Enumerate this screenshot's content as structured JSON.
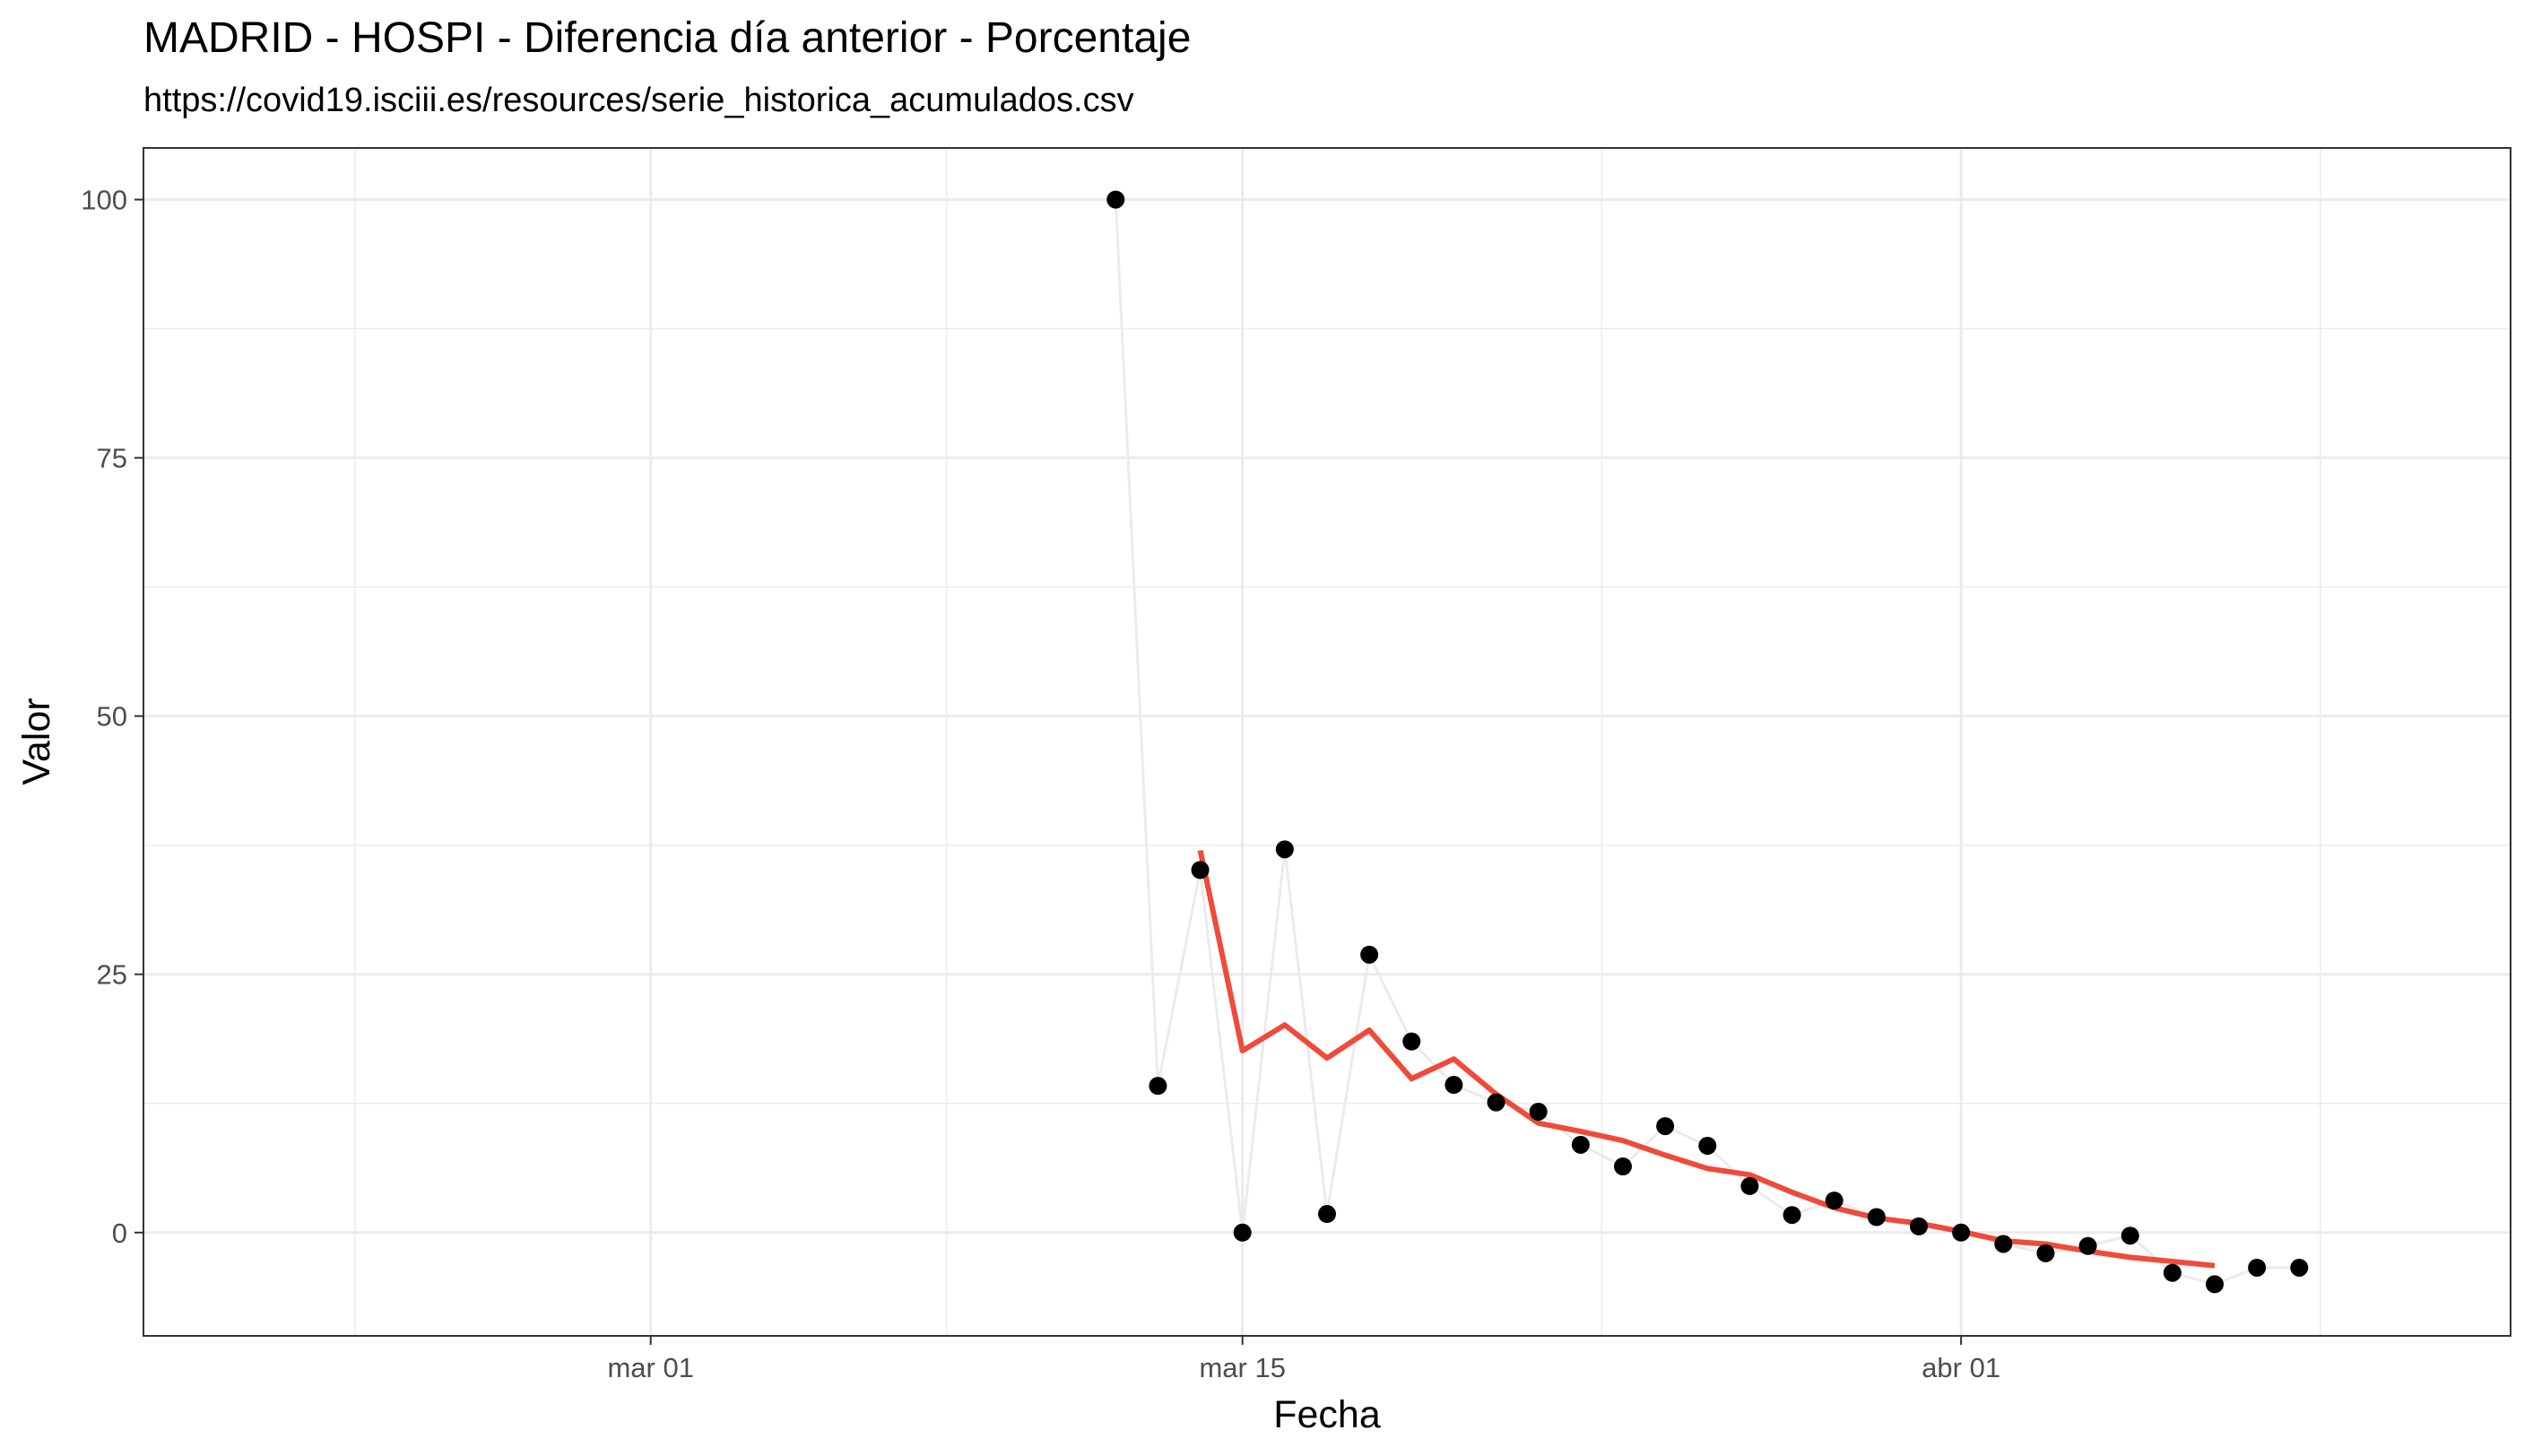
{
  "chart_data": {
    "type": "line",
    "title": "MADRID - HOSPI - Diferencia día anterior - Porcentaje",
    "subtitle": "https://covid19.isciii.es/resources/serie_historica_acumulados.csv",
    "xlabel": "Fecha",
    "ylabel": "Valor",
    "x_axis_type": "date",
    "xlim": [
      "2020-02-18",
      "2020-04-14"
    ],
    "ylim": [
      -10,
      105
    ],
    "x_ticks": [
      {
        "date": "2020-03-01",
        "label": "mar 01"
      },
      {
        "date": "2020-03-15",
        "label": "mar 15"
      },
      {
        "date": "2020-04-01",
        "label": "abr 01"
      }
    ],
    "y_ticks": [
      0,
      25,
      50,
      75,
      100
    ],
    "grid": true,
    "legend": "none",
    "colors": {
      "points": "#000000",
      "raw_line": "#ebebeb",
      "smoothed_line": "#f04a3a",
      "grid": "#ebebeb",
      "panel_border": "#333333",
      "tick_text": "#4d4d4d"
    },
    "series": [
      {
        "style": "points-with-light-line",
        "points": [
          {
            "x": "2020-03-12",
            "y": 100.0
          },
          {
            "x": "2020-03-13",
            "y": 14.2
          },
          {
            "x": "2020-03-14",
            "y": 35.1
          },
          {
            "x": "2020-03-15",
            "y": 0.0
          },
          {
            "x": "2020-03-16",
            "y": 37.1
          },
          {
            "x": "2020-03-17",
            "y": 1.8
          },
          {
            "x": "2020-03-18",
            "y": 26.9
          },
          {
            "x": "2020-03-19",
            "y": 18.5
          },
          {
            "x": "2020-03-20",
            "y": 14.3
          },
          {
            "x": "2020-03-21",
            "y": 12.6
          },
          {
            "x": "2020-03-22",
            "y": 11.7
          },
          {
            "x": "2020-03-23",
            "y": 8.5
          },
          {
            "x": "2020-03-24",
            "y": 6.4
          },
          {
            "x": "2020-03-25",
            "y": 10.3
          },
          {
            "x": "2020-03-26",
            "y": 8.4
          },
          {
            "x": "2020-03-27",
            "y": 4.5
          },
          {
            "x": "2020-03-28",
            "y": 1.7
          },
          {
            "x": "2020-03-29",
            "y": 3.1
          },
          {
            "x": "2020-03-30",
            "y": 1.5
          },
          {
            "x": "2020-03-31",
            "y": 0.6
          },
          {
            "x": "2020-04-01",
            "y": 0.0
          },
          {
            "x": "2020-04-02",
            "y": -1.1
          },
          {
            "x": "2020-04-03",
            "y": -2.0
          },
          {
            "x": "2020-04-04",
            "y": -1.3
          },
          {
            "x": "2020-04-05",
            "y": -0.3
          },
          {
            "x": "2020-04-06",
            "y": -3.9
          },
          {
            "x": "2020-04-07",
            "y": -5.0
          },
          {
            "x": "2020-04-08",
            "y": -3.4
          },
          {
            "x": "2020-04-09",
            "y": -3.4
          }
        ]
      },
      {
        "style": "smoothed-line",
        "points": [
          {
            "x": "2020-03-14",
            "y": 37.0
          },
          {
            "x": "2020-03-15",
            "y": 17.6
          },
          {
            "x": "2020-03-16",
            "y": 20.1
          },
          {
            "x": "2020-03-17",
            "y": 16.9
          },
          {
            "x": "2020-03-18",
            "y": 19.6
          },
          {
            "x": "2020-03-19",
            "y": 14.9
          },
          {
            "x": "2020-03-20",
            "y": 16.8
          },
          {
            "x": "2020-03-21",
            "y": 13.4
          },
          {
            "x": "2020-03-22",
            "y": 10.6
          },
          {
            "x": "2020-03-23",
            "y": 9.8
          },
          {
            "x": "2020-03-24",
            "y": 8.9
          },
          {
            "x": "2020-03-25",
            "y": 7.5
          },
          {
            "x": "2020-03-26",
            "y": 6.2
          },
          {
            "x": "2020-03-27",
            "y": 5.6
          },
          {
            "x": "2020-03-28",
            "y": 3.9
          },
          {
            "x": "2020-03-29",
            "y": 2.4
          },
          {
            "x": "2020-03-30",
            "y": 1.4
          },
          {
            "x": "2020-03-31",
            "y": 0.9
          },
          {
            "x": "2020-04-01",
            "y": 0.1
          },
          {
            "x": "2020-04-02",
            "y": -0.8
          },
          {
            "x": "2020-04-03",
            "y": -1.1
          },
          {
            "x": "2020-04-04",
            "y": -1.8
          },
          {
            "x": "2020-04-05",
            "y": -2.4
          },
          {
            "x": "2020-04-06",
            "y": -2.8
          },
          {
            "x": "2020-04-07",
            "y": -3.2
          }
        ]
      }
    ]
  }
}
